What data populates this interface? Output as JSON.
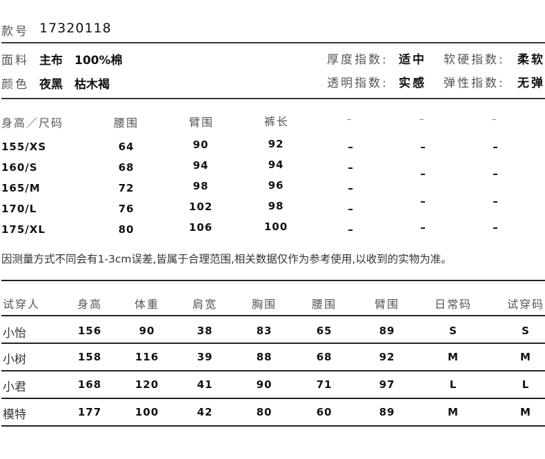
{
  "style_no": {
    "label": "款号",
    "value": "17320118"
  },
  "fabric": {
    "label": "面料",
    "value": "主布　100%棉"
  },
  "color": {
    "label": "颜色",
    "value": "夜黑　枯木褐"
  },
  "indices": [
    {
      "label": "厚度指数:",
      "value": "适中"
    },
    {
      "label": "软硬指数:",
      "value": "柔软"
    },
    {
      "label": "透明指数:",
      "value": "实感"
    },
    {
      "label": "弹性指数:",
      "value": "无弹"
    }
  ],
  "size_table": {
    "headers": [
      "身高／尺码",
      "腰围",
      "臂围",
      "裤长",
      "-",
      "-",
      "-"
    ],
    "rows": [
      {
        "size": "155/XS",
        "waist": "64",
        "arm": "90",
        "length": "92"
      },
      {
        "size": "160/S",
        "waist": "68",
        "arm": "94",
        "length": "94"
      },
      {
        "size": "165/M",
        "waist": "72",
        "arm": "98",
        "length": "96"
      },
      {
        "size": "170/L",
        "waist": "76",
        "arm": "102",
        "length": "98"
      },
      {
        "size": "175/XL",
        "waist": "80",
        "arm": "106",
        "length": "100"
      }
    ],
    "empty_cell": "-"
  },
  "note": "因测量方式不同会有1-3cm误差,皆属于合理范围,相关数据仅作为参考使用,以收到的实物为准。",
  "tryon_table": {
    "headers": [
      "试穿人",
      "身高",
      "体重",
      "肩宽",
      "胸围",
      "腰围",
      "臂围",
      "日常码",
      "试穿码"
    ],
    "rows": [
      [
        "小怡",
        "156",
        "90",
        "38",
        "83",
        "65",
        "89",
        "S",
        "S"
      ],
      [
        "小树",
        "158",
        "116",
        "39",
        "88",
        "68",
        "92",
        "M",
        "M"
      ],
      [
        "小君",
        "168",
        "120",
        "41",
        "90",
        "71",
        "97",
        "L",
        "L"
      ],
      [
        "模特",
        "177",
        "100",
        "42",
        "80",
        "60",
        "89",
        "M",
        "M"
      ]
    ]
  }
}
